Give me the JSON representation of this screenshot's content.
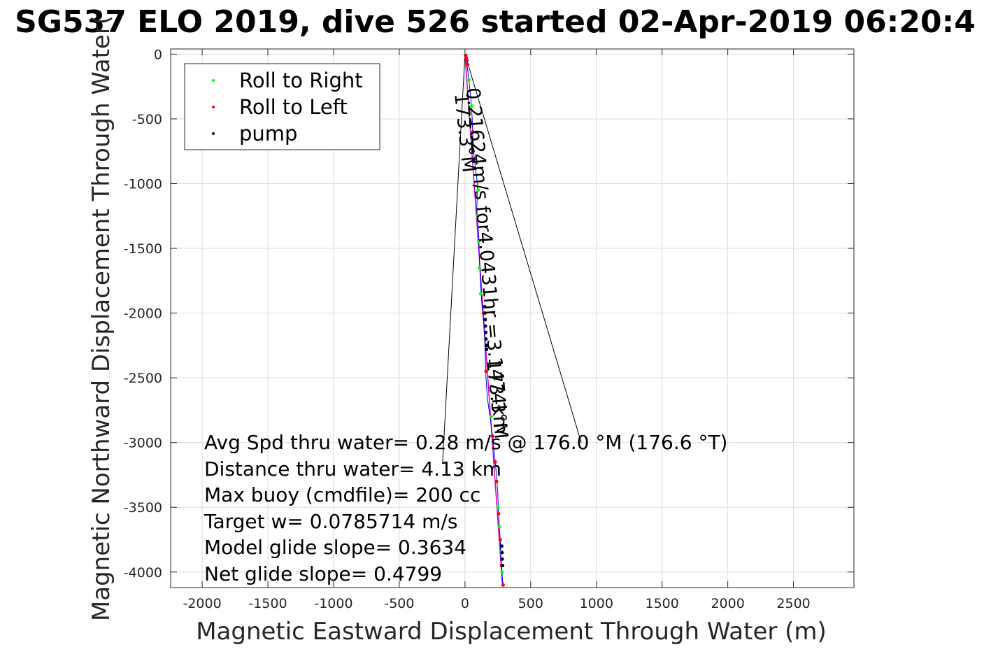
{
  "chart_data": {
    "type": "line",
    "title": "SG537 ELO 2019, dive 526 started 02-Apr-2019 06:20:4",
    "xlabel": "Magnetic Eastward Displacement Through Water (m)",
    "ylabel": "Magnetic Northward Displacement Through Water(",
    "xlim": [
      -2240,
      2960
    ],
    "ylim": [
      -4120,
      40
    ],
    "xticks": [
      -2000,
      -1500,
      -1000,
      -500,
      0,
      500,
      1000,
      1500,
      2000,
      2500
    ],
    "yticks": [
      0,
      -500,
      -1000,
      -1500,
      -2000,
      -2500,
      -3000,
      -3500,
      -4000
    ],
    "grid": true,
    "legend_position": "top-left",
    "legend": [
      {
        "label": "Roll to Right",
        "color": "#00ff00"
      },
      {
        "label": "Roll to Left",
        "color": "#ff0000"
      },
      {
        "label": "pump",
        "color": "#000033"
      }
    ],
    "track": {
      "color": "#0000ff",
      "x": [
        0,
        15,
        30,
        45,
        55,
        60,
        70,
        95,
        90,
        105,
        110,
        120,
        130,
        140,
        150,
        155,
        160,
        170,
        190,
        210,
        225,
        240,
        250,
        255,
        262,
        268,
        272,
        278,
        282,
        285,
        290
      ],
      "y": [
        0,
        -80,
        -200,
        -350,
        -500,
        -650,
        -800,
        -1000,
        -1200,
        -1400,
        -1600,
        -1800,
        -1950,
        -2050,
        -2200,
        -2350,
        -2500,
        -2650,
        -2800,
        -2950,
        -3100,
        -3250,
        -3400,
        -3550,
        -3650,
        -3750,
        -3850,
        -3950,
        -4000,
        -4050,
        -4100
      ]
    },
    "reference_line": {
      "color": "#cc00cc",
      "x": [
        0,
        285
      ],
      "y": [
        0,
        -4100
      ]
    },
    "lines": [
      {
        "x": [
          0,
          -170
        ],
        "y": [
          0,
          -3150
        ]
      },
      {
        "x": [
          0,
          885
        ],
        "y": [
          0,
          -3000
        ]
      }
    ],
    "points": {
      "roll_right": {
        "color": "#00ff00",
        "x": [
          30,
          50,
          100,
          95,
          105,
          110,
          120,
          200,
          250,
          262,
          272,
          282
        ],
        "y": [
          -200,
          -400,
          -1050,
          -1250,
          -1450,
          -1650,
          -1850,
          -2800,
          -3500,
          -3650,
          -3850,
          -4000
        ]
      },
      "roll_left": {
        "color": "#ff0000",
        "x": [
          5,
          10,
          15,
          20,
          60,
          140,
          160,
          210,
          230,
          240,
          255,
          268,
          278,
          290
        ],
        "y": [
          -10,
          -30,
          -50,
          -80,
          -600,
          -2000,
          -2450,
          -2950,
          -3150,
          -3300,
          -3550,
          -3750,
          -3950,
          -4100
        ]
      },
      "pump": {
        "color": "#000033",
        "x": [
          150,
          152,
          154,
          156,
          158,
          160,
          162,
          164,
          280,
          282,
          284,
          286
        ],
        "y": [
          -1950,
          -2000,
          -2050,
          -2100,
          -2150,
          -2200,
          -2250,
          -2280,
          -3800,
          -3850,
          -3900,
          -3950
        ]
      }
    },
    "annotations": {
      "avg_speed": "Avg Spd thru water=  0.28 m/s @ 176.0 °M (176.6 °T)",
      "distance": "Distance thru water=  4.13 km",
      "max_buoy": "Max buoy (cmdfile)= 200 cc",
      "target_w": "Target w= 0.0785714 m/s",
      "model_glide": "Model glide slope= 0.3634",
      "net_glide": "Net glide slope= 0.4799",
      "heading_top": "173.3°M",
      "speed_rotated": "0.21624m/s for4.0431hr =3.1474km",
      "heading_mid": "173.3°M"
    }
  }
}
